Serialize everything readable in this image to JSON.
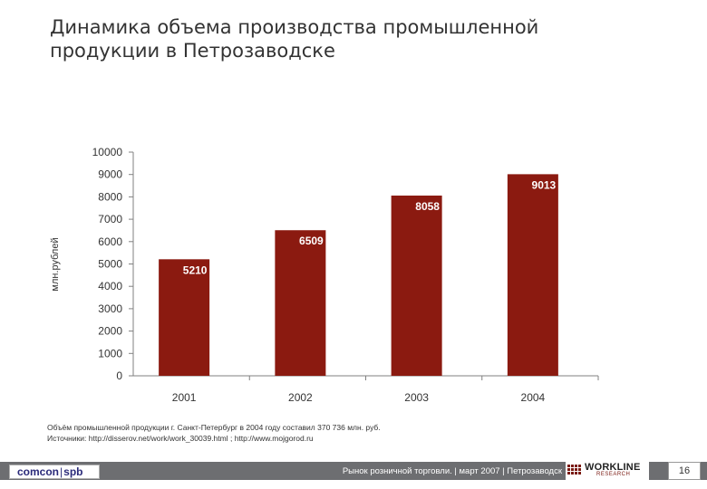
{
  "title": {
    "line1": "Динамика объема производства промышленной",
    "line2": "продукции в Петрозаводске"
  },
  "colors": {
    "bar": "#8b1a10",
    "axis": "#808080",
    "footer_bg": "#6d6e71",
    "label_text": "#ffffff"
  },
  "chart_data": {
    "type": "bar",
    "title": "Динамика объема производства промышленной продукции в Петрозаводске",
    "ylabel": "млн.рублей",
    "xlabel": "",
    "categories": [
      "2001",
      "2002",
      "2003",
      "2004"
    ],
    "values": [
      5210,
      6509,
      8058,
      9013
    ],
    "data_labels": [
      "5210",
      "6509",
      "8058",
      "9013"
    ],
    "ylim": [
      0,
      10000
    ],
    "yticks": [
      "0",
      "1000",
      "2000",
      "3000",
      "4000",
      "5000",
      "6000",
      "7000",
      "8000",
      "9000",
      "10000"
    ],
    "grid": false,
    "legend": "none"
  },
  "footnote": {
    "line1": "Объём промышленной продукции г. Санкт-Петербург в 2004 году составил 370 736 млн. руб.",
    "line2": "Источники: http://disserov.net/work/work_30039.html ; http://www.mojgorod.ru"
  },
  "footer": {
    "logo_left_a": "comcon",
    "logo_left_sep": "|",
    "logo_left_b": "spb",
    "text": "Рынок розничной торговли. | март 2007 | Петрозаводск",
    "logo_right": "WORKLINE",
    "logo_right_sub": "RESEARCH",
    "page_number": "16"
  }
}
